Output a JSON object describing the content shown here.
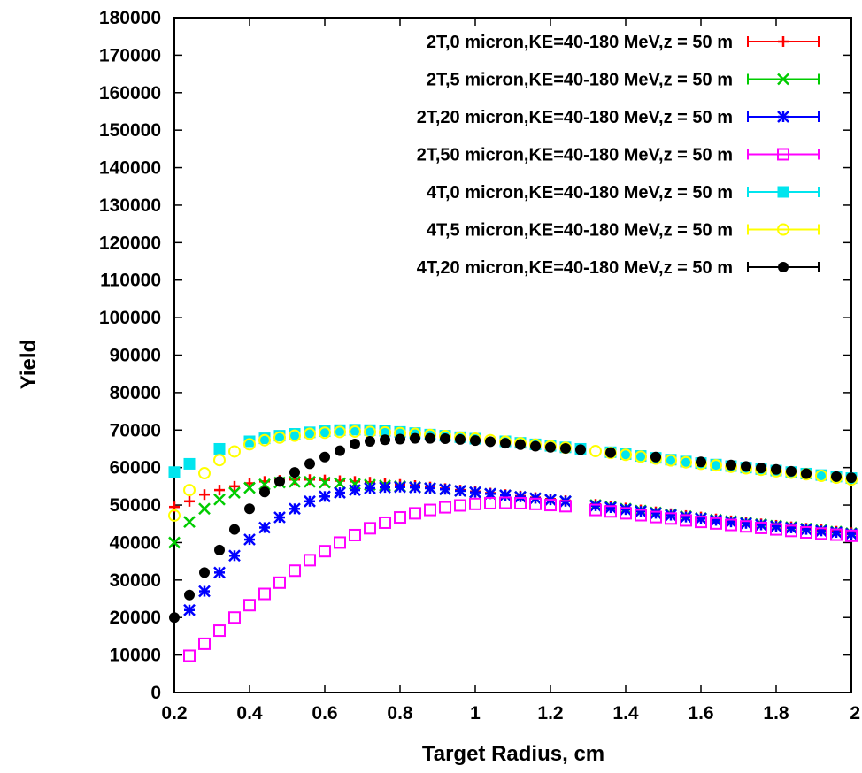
{
  "chart_data": {
    "type": "scatter",
    "xlabel": "Target Radius, cm",
    "ylabel": "Yield",
    "xlim": [
      0.2,
      2.0
    ],
    "ylim": [
      0,
      180000
    ],
    "xticks": [
      0.2,
      0.4,
      0.6,
      0.8,
      1.0,
      1.2,
      1.4,
      1.6,
      1.8,
      2.0
    ],
    "xtick_labels": [
      "0.2",
      "0.4",
      "0.6",
      "0.8",
      "1",
      "1.2",
      "1.4",
      "1.6",
      "1.8",
      "2"
    ],
    "yticks": [
      0,
      10000,
      20000,
      30000,
      40000,
      50000,
      60000,
      70000,
      80000,
      90000,
      100000,
      110000,
      120000,
      130000,
      140000,
      150000,
      160000,
      170000,
      180000
    ],
    "ytick_labels": [
      "0",
      "10000",
      "20000",
      "30000",
      "40000",
      "50000",
      "60000",
      "70000",
      "80000",
      "90000",
      "100000",
      "110000",
      "120000",
      "130000",
      "140000",
      "150000",
      "160000",
      "170000",
      "180000"
    ],
    "grid": false,
    "legend_position": "top-right",
    "series": [
      {
        "name": "2T,0 micron,KE=40-180 MeV,z = 50 m",
        "color": "#ff0000",
        "marker": "plus",
        "x": [
          0.2,
          0.24,
          0.28,
          0.32,
          0.36,
          0.4,
          0.44,
          0.48,
          0.52,
          0.56,
          0.6,
          0.64,
          0.68,
          0.72,
          0.76,
          0.8,
          0.84,
          0.88,
          0.92,
          0.96,
          1.0,
          1.04,
          1.08,
          1.12,
          1.16,
          1.2,
          1.24,
          1.32,
          1.36,
          1.4,
          1.44,
          1.48,
          1.52,
          1.56,
          1.6,
          1.64,
          1.68,
          1.72,
          1.76,
          1.8,
          1.84,
          1.88,
          1.92,
          1.96,
          2.0
        ],
        "y": [
          49500,
          51000,
          52800,
          54000,
          55000,
          55800,
          56300,
          56600,
          56800,
          56800,
          56700,
          56500,
          56300,
          56100,
          55800,
          55500,
          55200,
          54800,
          54400,
          54000,
          53600,
          53200,
          52800,
          52400,
          52000,
          51600,
          51200,
          50200,
          49700,
          49200,
          48700,
          48200,
          47700,
          47200,
          46800,
          46300,
          45800,
          45400,
          45000,
          44600,
          44200,
          43800,
          43400,
          43000,
          42600
        ]
      },
      {
        "name": "2T,5 micron,KE=40-180 MeV,z = 50 m",
        "color": "#00cc00",
        "marker": "x",
        "x": [
          0.2,
          0.24,
          0.28,
          0.32,
          0.36,
          0.4,
          0.44,
          0.48,
          0.52,
          0.56,
          0.6,
          0.64,
          0.68,
          0.72,
          0.76,
          0.8,
          0.84,
          0.88,
          0.92,
          0.96,
          1.0,
          1.04,
          1.08,
          1.12,
          1.16,
          1.2,
          1.24,
          1.32,
          1.36,
          1.4,
          1.44,
          1.48,
          1.52,
          1.56,
          1.6,
          1.64,
          1.68,
          1.72,
          1.76,
          1.8,
          1.84,
          1.88,
          1.92,
          1.96,
          2.0
        ],
        "y": [
          40000,
          45500,
          49000,
          51500,
          53300,
          54600,
          55500,
          56000,
          56200,
          56200,
          56000,
          55800,
          55600,
          55400,
          55200,
          55000,
          54800,
          54500,
          54200,
          53800,
          53400,
          53000,
          52600,
          52200,
          51800,
          51400,
          51000,
          50000,
          49500,
          49000,
          48500,
          48000,
          47500,
          47000,
          46500,
          46100,
          45700,
          45300,
          44900,
          44500,
          44100,
          43700,
          43300,
          42900,
          42500
        ]
      },
      {
        "name": "2T,20 micron,KE=40-180 MeV,z = 50 m",
        "color": "#0000ff",
        "marker": "star",
        "x": [
          0.24,
          0.28,
          0.32,
          0.36,
          0.4,
          0.44,
          0.48,
          0.52,
          0.56,
          0.6,
          0.64,
          0.68,
          0.72,
          0.76,
          0.8,
          0.84,
          0.88,
          0.92,
          0.96,
          1.0,
          1.04,
          1.08,
          1.12,
          1.16,
          1.2,
          1.24,
          1.32,
          1.36,
          1.4,
          1.44,
          1.48,
          1.52,
          1.56,
          1.6,
          1.64,
          1.68,
          1.72,
          1.76,
          1.8,
          1.84,
          1.88,
          1.92,
          1.96,
          2.0
        ],
        "y": [
          22000,
          27000,
          32000,
          36500,
          40800,
          44000,
          46700,
          49000,
          51000,
          52300,
          53300,
          54000,
          54500,
          54700,
          54800,
          54700,
          54500,
          54200,
          53800,
          53400,
          53000,
          52600,
          52200,
          51800,
          51400,
          51000,
          49800,
          49300,
          48800,
          48300,
          47800,
          47300,
          46800,
          46400,
          45900,
          45500,
          45100,
          44700,
          44300,
          43900,
          43500,
          43100,
          42700,
          42300
        ]
      },
      {
        "name": "2T,50 micron,KE=40-180 MeV,z = 50 m",
        "color": "#ff00ff",
        "marker": "square-open",
        "x": [
          0.24,
          0.28,
          0.32,
          0.36,
          0.4,
          0.44,
          0.48,
          0.52,
          0.56,
          0.6,
          0.64,
          0.68,
          0.72,
          0.76,
          0.8,
          0.84,
          0.88,
          0.92,
          0.96,
          1.0,
          1.04,
          1.08,
          1.12,
          1.16,
          1.2,
          1.24,
          1.32,
          1.36,
          1.4,
          1.44,
          1.48,
          1.52,
          1.56,
          1.6,
          1.64,
          1.68,
          1.72,
          1.76,
          1.8,
          1.84,
          1.88,
          1.92,
          1.96,
          2.0
        ],
        "y": [
          9800,
          13000,
          16500,
          20000,
          23300,
          26300,
          29300,
          32500,
          35300,
          37700,
          40000,
          42000,
          43800,
          45300,
          46700,
          47800,
          48700,
          49400,
          49900,
          50300,
          50500,
          50600,
          50500,
          50300,
          50000,
          49700,
          48700,
          48300,
          47800,
          47300,
          46800,
          46400,
          45900,
          45500,
          45100,
          44700,
          44300,
          43900,
          43500,
          43100,
          42700,
          42400,
          42100,
          41800
        ]
      },
      {
        "name": "4T,0 micron,KE=40-180 MeV,z = 50 m",
        "color": "#00e5ee",
        "marker": "square-filled",
        "x": [
          0.2,
          0.24,
          0.32,
          0.4,
          0.44,
          0.48,
          0.52,
          0.56,
          0.6,
          0.64,
          0.68,
          0.72,
          0.76,
          0.8,
          0.84,
          0.88,
          0.92,
          0.96,
          1.0,
          1.08,
          1.12,
          1.16,
          1.2,
          1.24,
          1.28,
          1.36,
          1.4,
          1.44,
          1.48,
          1.52,
          1.56,
          1.6,
          1.64,
          1.68,
          1.72,
          1.76,
          1.8,
          1.84,
          1.88,
          1.92,
          1.96,
          2.0
        ],
        "y": [
          58800,
          61000,
          65000,
          67000,
          67800,
          68500,
          69000,
          69400,
          69700,
          70000,
          70100,
          70000,
          69800,
          69500,
          69200,
          68800,
          68500,
          68100,
          67700,
          67000,
          66600,
          66200,
          65800,
          65400,
          65000,
          64100,
          63600,
          63100,
          62600,
          62100,
          61600,
          61200,
          60800,
          60400,
          60000,
          59600,
          59200,
          58800,
          58400,
          58000,
          57600,
          57200
        ]
      },
      {
        "name": "4T,5 micron,KE=40-180 MeV,z = 50 m",
        "color": "#ffff00",
        "marker": "circle-open",
        "x": [
          0.2,
          0.24,
          0.28,
          0.32,
          0.36,
          0.4,
          0.44,
          0.48,
          0.52,
          0.56,
          0.6,
          0.64,
          0.68,
          0.72,
          0.76,
          0.8,
          0.84,
          0.88,
          0.92,
          0.96,
          1.0,
          1.04,
          1.08,
          1.12,
          1.16,
          1.2,
          1.24,
          1.32,
          1.36,
          1.4,
          1.44,
          1.48,
          1.52,
          1.56,
          1.6,
          1.64,
          1.68,
          1.72,
          1.76,
          1.8,
          1.84,
          1.88,
          1.92,
          1.96,
          2.0
        ],
        "y": [
          47200,
          54000,
          58500,
          62000,
          64300,
          66200,
          67300,
          68000,
          68500,
          69000,
          69300,
          69500,
          69600,
          69500,
          69400,
          69200,
          69000,
          68700,
          68400,
          68000,
          67700,
          67300,
          66900,
          66500,
          66100,
          65700,
          65300,
          64400,
          63900,
          63400,
          62900,
          62400,
          61900,
          61400,
          61000,
          60600,
          60200,
          59800,
          59400,
          59000,
          58600,
          58200,
          57800,
          57300,
          56800
        ]
      },
      {
        "name": "4T,20 micron,KE=40-180 MeV,z = 50 m",
        "color": "#000000",
        "marker": "circle-filled",
        "x": [
          0.2,
          0.24,
          0.28,
          0.32,
          0.36,
          0.4,
          0.44,
          0.48,
          0.52,
          0.56,
          0.6,
          0.64,
          0.68,
          0.72,
          0.76,
          0.8,
          0.84,
          0.88,
          0.92,
          0.96,
          1.0,
          1.04,
          1.08,
          1.12,
          1.16,
          1.2,
          1.24,
          1.28,
          1.36,
          1.48,
          1.6,
          1.68,
          1.72,
          1.76,
          1.8,
          1.84,
          1.88,
          1.96,
          2.0
        ],
        "y": [
          20000,
          26000,
          32000,
          38000,
          43500,
          49000,
          53500,
          56300,
          58700,
          61000,
          62800,
          64500,
          66300,
          67000,
          67400,
          67600,
          67800,
          67800,
          67700,
          67500,
          67200,
          66900,
          66500,
          66100,
          65700,
          65400,
          65100,
          64800,
          64000,
          62800,
          61500,
          60700,
          60300,
          59900,
          59500,
          59000,
          58400,
          57600,
          57300
        ]
      }
    ]
  }
}
